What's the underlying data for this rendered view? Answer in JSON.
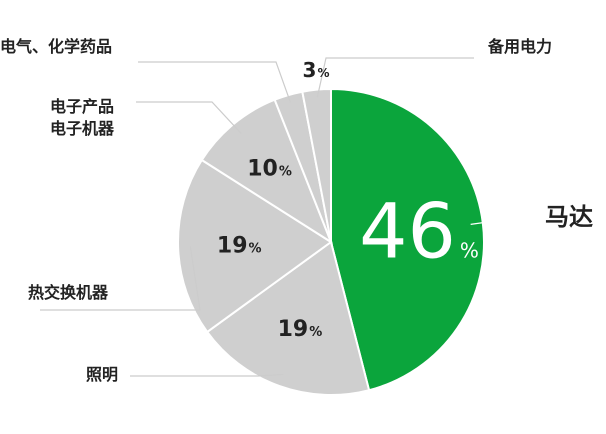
{
  "chart_data": {
    "type": "pie",
    "title": "",
    "slices": [
      {
        "label": "马达",
        "value": 46,
        "color": "#0ba53c"
      },
      {
        "label": "照明",
        "value": 19,
        "color": "#cfcfcf"
      },
      {
        "label": "热交换机器",
        "value": 19,
        "color": "#cfcfcf"
      },
      {
        "label": "电子产品\n电子机器",
        "value": 10,
        "color": "#cfcfcf"
      },
      {
        "label": "电气、化学药品",
        "value": 3,
        "color": "#cfcfcf"
      },
      {
        "label": "备用电力",
        "value": 3,
        "color": "#cfcfcf"
      }
    ],
    "value_suffix": "%"
  }
}
